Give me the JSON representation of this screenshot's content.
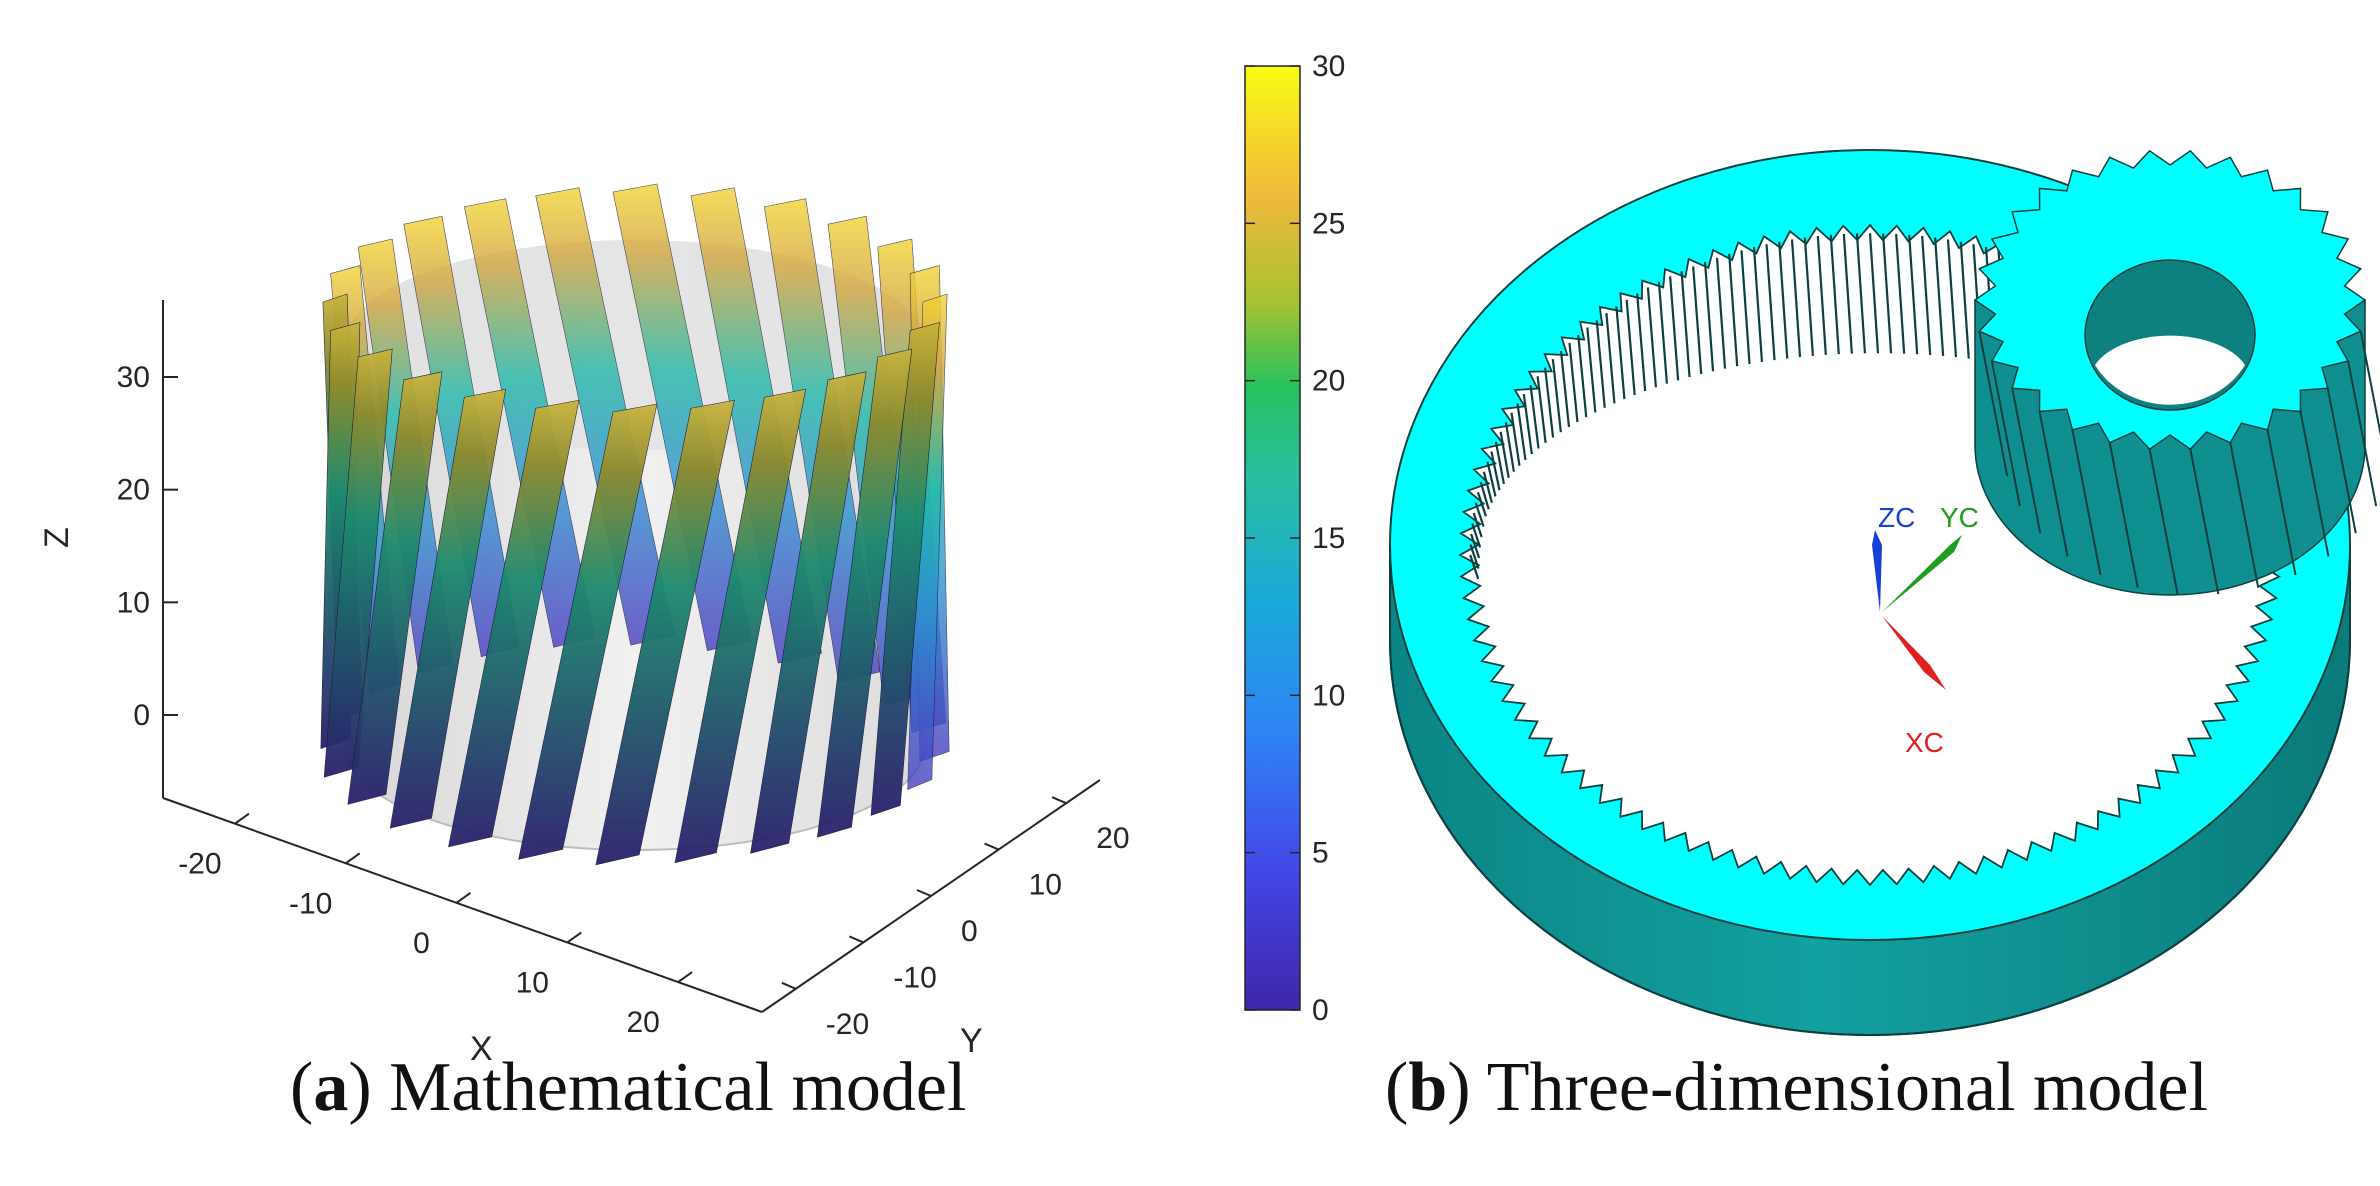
{
  "panel_a": {
    "caption_letter": "a",
    "caption_text": "Mathematical model",
    "axes": {
      "xlabel": "X",
      "ylabel": "Y",
      "zlabel": "Z",
      "x_ticks": [
        "-20",
        "-10",
        "0",
        "10",
        "20"
      ],
      "y_ticks": [
        "-20",
        "-10",
        "0",
        "10",
        "20"
      ],
      "z_ticks": [
        "0",
        "10",
        "20",
        "30"
      ]
    },
    "colorbar": {
      "ticks": [
        "0",
        "5",
        "10",
        "15",
        "20",
        "25",
        "30"
      ],
      "range": [
        0,
        30
      ],
      "colormap": [
        "#3e26a8",
        "#3f63ff",
        "#1d9ce6",
        "#1db5bf",
        "#2fc26c",
        "#b6c12a",
        "#fec235",
        "#f9fb14"
      ]
    },
    "model": {
      "tooth_count": 24,
      "note_colors": {
        "transparent_core": "#d8d8d8"
      }
    }
  },
  "panel_b": {
    "caption_letter": "b",
    "caption_text": "Three-dimensional model",
    "axis_triad": {
      "z_label": "ZC",
      "y_label": "YC",
      "x_label": "XC",
      "z_color": "#1a3fd6",
      "y_color": "#1f9d1f",
      "x_color": "#e02020"
    },
    "colors": {
      "gear_face": "#00ffff",
      "gear_side": "#0e8f8f",
      "gear_line": "#0c3f3f"
    }
  }
}
